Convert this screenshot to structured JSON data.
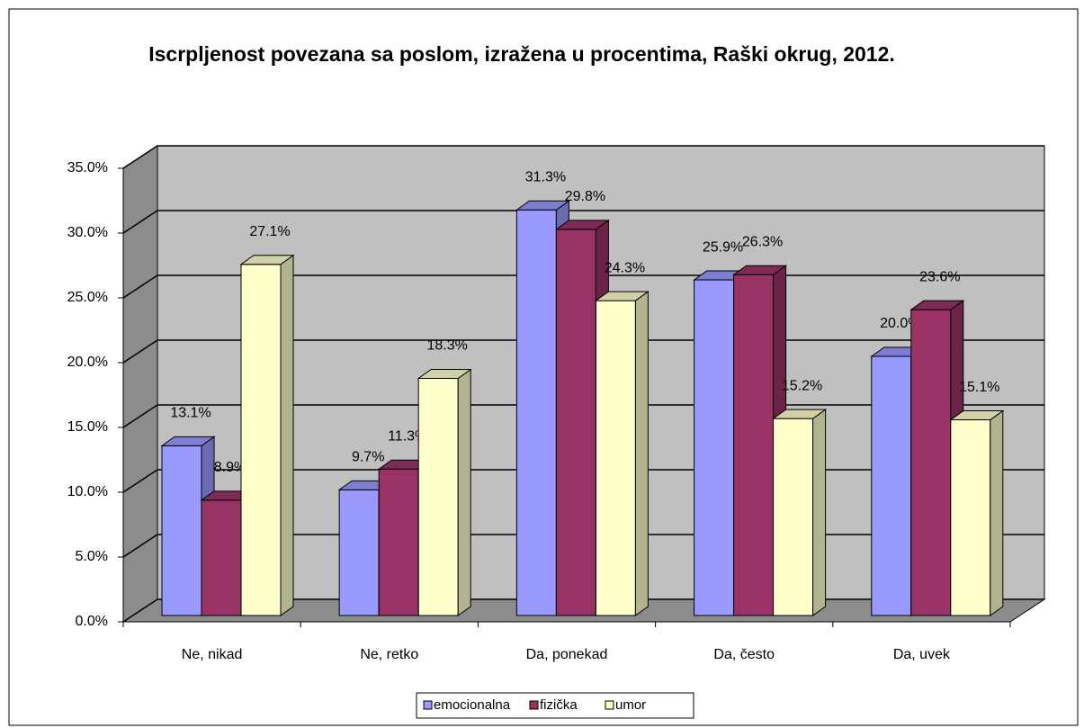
{
  "chart_data": {
    "type": "bar3d",
    "title": "Iscrpljenost povezana sa poslom, izražena u procentima, Raški okrug, 2012.",
    "categories": [
      "Ne, nikad",
      "Ne, retko",
      "Da, ponekad",
      "Da, često",
      "Da, uvek"
    ],
    "series": [
      {
        "name": "emocionalna",
        "color": "#9999ff",
        "values": [
          13.1,
          9.7,
          31.3,
          25.9,
          20.0
        ],
        "value_labels": [
          "13.1%",
          "9.7%",
          "31.3%",
          "25.9%",
          "20.0%"
        ]
      },
      {
        "name": "fizička",
        "color": "#993366",
        "values": [
          8.9,
          11.3,
          29.8,
          26.3,
          23.6
        ],
        "value_labels": [
          "8.9%",
          "11.3%",
          "29.8%",
          "26.3%",
          "23.6%"
        ]
      },
      {
        "name": "umor",
        "color": "#ffffcc",
        "values": [
          27.1,
          18.3,
          24.3,
          15.2,
          15.1
        ],
        "value_labels": [
          "27.1%",
          "18.3%",
          "24.3%",
          "15.2%",
          "15.1%"
        ]
      }
    ],
    "ylim": [
      0,
      35
    ],
    "yticks": [
      {
        "value": 0,
        "label": "0.0%"
      },
      {
        "value": 5,
        "label": "5.0%"
      },
      {
        "value": 10,
        "label": "10.0%"
      },
      {
        "value": 15,
        "label": "15.0%"
      },
      {
        "value": 20,
        "label": "20.0%"
      },
      {
        "value": 25,
        "label": "25.0%"
      },
      {
        "value": 30,
        "label": "30.0%"
      },
      {
        "value": 35,
        "label": "35.0%"
      }
    ],
    "grid": true,
    "legend": "bottom"
  }
}
